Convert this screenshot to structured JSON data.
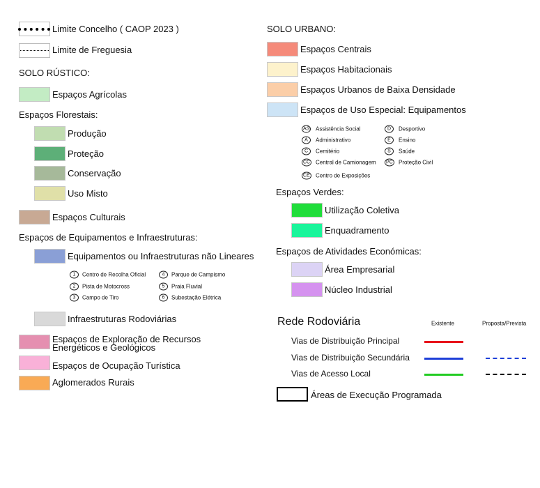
{
  "limits": [
    {
      "label": "Limite Concelho ( CAOP 2023 )"
    },
    {
      "label": "Limite de Freguesia"
    }
  ],
  "rustic": {
    "title": "SOLO RÚSTICO:",
    "agricultural": {
      "label": "Espaços Agrícolas",
      "color": "#c3ecc4"
    },
    "forest": {
      "title": "Espaços Florestais:",
      "items": [
        {
          "label": "Produção",
          "color": "#c1ddb1"
        },
        {
          "label": "Proteção",
          "color": "#5daf78"
        },
        {
          "label": "Conservação",
          "color": "#a6b99a"
        },
        {
          "label": "Uso Misto",
          "color": "#e0e0a8"
        }
      ]
    },
    "cultural": {
      "label": "Espaços Culturais",
      "color": "#c8a994"
    },
    "equipment": {
      "title": "Espaços de Equipamentos e Infraestruturas:",
      "nonlinear": {
        "label": "Equipamentos ou Infraestruturas não Lineares",
        "color": "#8a9fd6"
      },
      "codes": [
        {
          "code": "1",
          "label": "Centro de Recolha Oficial"
        },
        {
          "code": "2",
          "label": "Pista de Motocross"
        },
        {
          "code": "3",
          "label": "Campo de Tiro"
        },
        {
          "code": "4",
          "label": "Parque de Campismo"
        },
        {
          "code": "5",
          "label": "Praia Fluvial"
        },
        {
          "code": "6",
          "label": "Subestação Elétrica"
        }
      ],
      "road": {
        "label": "Infraestruturas Rodoviárias",
        "color": "#d9d9d9"
      }
    },
    "others": [
      {
        "label": "Espaços de Exploração de Recursos",
        "label2": "Energéticos e Geológicos",
        "color": "#e58fb0"
      },
      {
        "label": "Espaços de Ocupação Turística",
        "color": "#f9b1d8"
      },
      {
        "label": "Aglomerados Rurais",
        "color": "#f9aa55"
      }
    ]
  },
  "urban": {
    "title": "SOLO URBANO:",
    "items": [
      {
        "label": "Espaços Centrais",
        "color": "#f58a7a"
      },
      {
        "label": "Espaços Habitacionais",
        "color": "#fdf2cc"
      },
      {
        "label": "Espaços Urbanos de Baixa Densidade",
        "color": "#fbcea8"
      },
      {
        "label": "Espaços de Uso Especial: Equipamentos",
        "color": "#cde4f6"
      }
    ],
    "codes": [
      {
        "code": "AS",
        "label": "Assistência Social"
      },
      {
        "code": "A",
        "label": "Administrativo"
      },
      {
        "code": "C",
        "label": "Cemitério"
      },
      {
        "code": "CC",
        "label": "Central de Camionagem"
      },
      {
        "code": "CE",
        "label": "Centro de Exposições"
      },
      {
        "code": "D",
        "label": "Desportivo"
      },
      {
        "code": "E",
        "label": "Ensino"
      },
      {
        "code": "S",
        "label": "Saúde"
      },
      {
        "code": "PC",
        "label": "Proteção Civil"
      }
    ],
    "green": {
      "title": "Espaços Verdes:",
      "items": [
        {
          "label": "Utilização Coletiva",
          "color": "#20dd3b"
        },
        {
          "label": "Enquadramento",
          "color": "#1af59b"
        }
      ]
    },
    "economic": {
      "title": "Espaços de Atividades Económicas:",
      "items": [
        {
          "label": "Área Empresarial",
          "color": "#dcd3f5"
        },
        {
          "label": "Núcleo Industrial",
          "color": "#d592ef"
        }
      ]
    }
  },
  "roads": {
    "title": "Rede Rodoviária",
    "existing": "Existente",
    "proposed": "Proposta/Prevista",
    "items": [
      {
        "label": "Vias de Distribuição Principal",
        "existing_color": "#e8141c"
      },
      {
        "label": "Vias de Distribuição Secundária",
        "existing_color": "#1e3fd8",
        "proposed_color": "#1e3fd8"
      },
      {
        "label": "Vias de Acesso Local",
        "existing_color": "#22cc22",
        "proposed_color": "#000000"
      }
    ]
  },
  "programmed": {
    "label": "Áreas de Execução Programada"
  }
}
